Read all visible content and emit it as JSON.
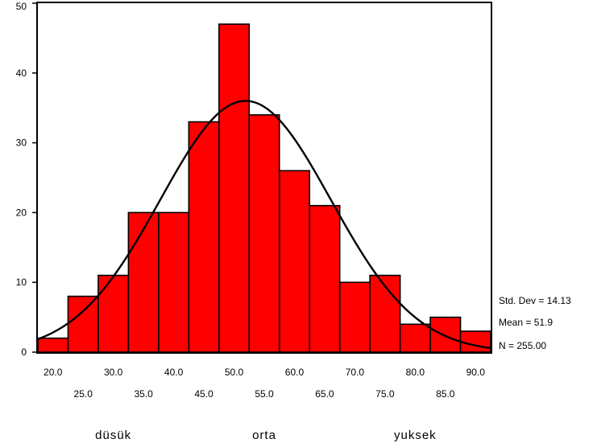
{
  "chart_data": {
    "type": "bar",
    "title": "",
    "xlabel": "",
    "ylabel": "",
    "bin_width": 5,
    "bin_centers": [
      20,
      25,
      30,
      35,
      40,
      45,
      50,
      55,
      60,
      65,
      70,
      75,
      80,
      85,
      90
    ],
    "values": [
      2,
      8,
      11,
      20,
      20,
      33,
      47,
      34,
      26,
      21,
      10,
      11,
      4,
      5,
      3
    ],
    "xlim": [
      17.5,
      92.5
    ],
    "ylim": [
      0,
      50
    ],
    "y_ticks": [
      0,
      10,
      20,
      30,
      40,
      50
    ],
    "x_tick_labels_upper": [
      "20.0",
      "30.0",
      "40.0",
      "50.0",
      "60.0",
      "70.0",
      "80.0",
      "90.0"
    ],
    "x_tick_values_upper": [
      20,
      30,
      40,
      50,
      60,
      70,
      80,
      90
    ],
    "x_tick_labels_lower": [
      "25.0",
      "35.0",
      "45.0",
      "55.0",
      "65.0",
      "75.0",
      "85.0"
    ],
    "x_tick_values_lower": [
      25,
      35,
      45,
      55,
      65,
      75,
      85
    ],
    "bar_color": "#ff0000",
    "normal_curve": {
      "mean": 51.9,
      "std_dev": 14.13,
      "n": 255
    },
    "stats": {
      "std_dev": "Std. Dev = 14.13",
      "mean": "Mean = 51.9",
      "n": "N = 255.00"
    },
    "category_labels": [
      {
        "text": "düsük",
        "x": 30
      },
      {
        "text": "orta",
        "x": 55
      },
      {
        "text": "yuksek",
        "x": 80
      }
    ]
  }
}
